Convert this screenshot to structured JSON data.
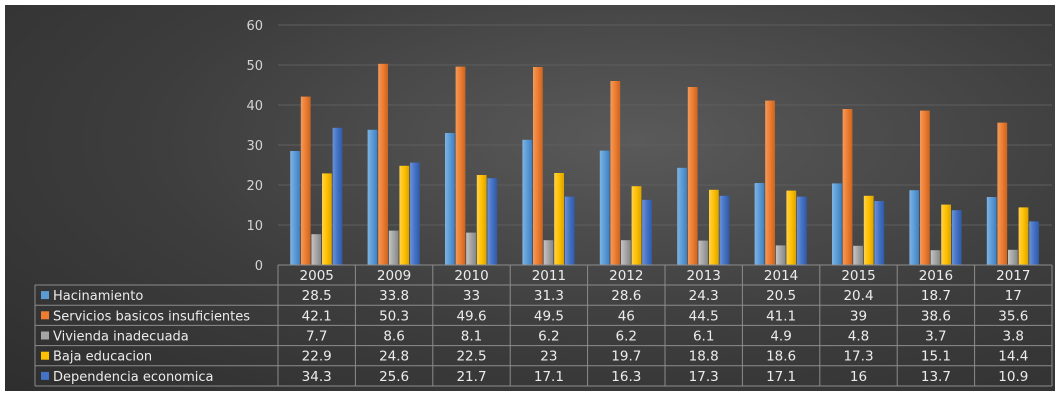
{
  "chart_data": {
    "type": "bar",
    "title": "",
    "xlabel": "",
    "ylabel": "",
    "ylim": [
      0,
      60
    ],
    "yticks": [
      0,
      10,
      20,
      30,
      40,
      50,
      60
    ],
    "grid": true,
    "legend": "data-table-left",
    "categories": [
      "2005",
      "2009",
      "2010",
      "2011",
      "2012",
      "2013",
      "2014",
      "2015",
      "2016",
      "2017"
    ],
    "series": [
      {
        "name": "Hacinamiento",
        "color": "#5b9bd5",
        "values": [
          28.5,
          33.8,
          33,
          31.3,
          28.6,
          24.3,
          20.5,
          20.4,
          18.7,
          17
        ]
      },
      {
        "name": "Servicios basicos insuficientes",
        "color": "#ed7d31",
        "values": [
          42.1,
          50.3,
          49.6,
          49.5,
          46,
          44.5,
          41.1,
          39,
          38.6,
          35.6
        ]
      },
      {
        "name": "Vivienda inadecuada",
        "color": "#a5a5a5",
        "values": [
          7.7,
          8.6,
          8.1,
          6.2,
          6.2,
          6.1,
          4.9,
          4.8,
          3.7,
          3.8
        ]
      },
      {
        "name": "Baja educacion",
        "color": "#ffc000",
        "values": [
          22.9,
          24.8,
          22.5,
          23,
          19.7,
          18.8,
          18.6,
          17.3,
          15.1,
          14.4
        ]
      },
      {
        "name": "Dependencia economica",
        "color": "#4472c4",
        "values": [
          34.3,
          25.6,
          21.7,
          17.1,
          16.3,
          17.3,
          17.1,
          16,
          13.7,
          10.9
        ]
      }
    ]
  }
}
